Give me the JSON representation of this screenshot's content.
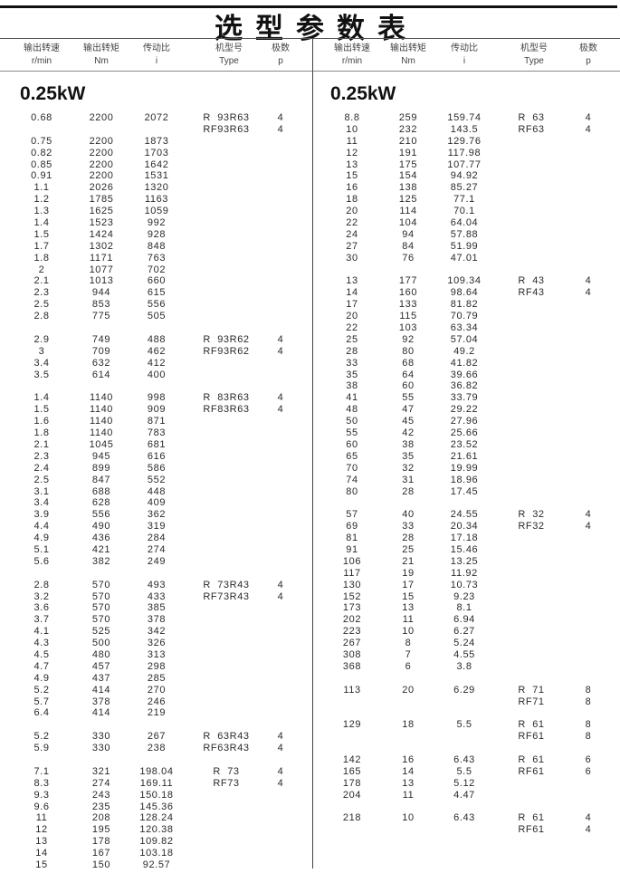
{
  "title": "选型参数表",
  "headers": [
    {
      "cn": "输出转速",
      "unit": "r/min"
    },
    {
      "cn": "输出转矩",
      "unit": "Nm"
    },
    {
      "cn": "传动比",
      "unit": "i"
    },
    {
      "cn": "机型号",
      "unit": "Type"
    },
    {
      "cn": "极数",
      "unit": "p"
    }
  ],
  "left": {
    "power": "0.25kW",
    "groups": [
      {
        "rows": [
          [
            "0.68",
            "2200",
            "2072",
            "R  93R63",
            "4"
          ],
          [
            "",
            "",
            "",
            "RF93R63",
            "4"
          ],
          [
            "0.75",
            "2200",
            "1873",
            "",
            ""
          ],
          [
            "0.82",
            "2200",
            "1703",
            "",
            ""
          ],
          [
            "0.85",
            "2200",
            "1642",
            "",
            ""
          ],
          [
            "0.91",
            "2200",
            "1531",
            "",
            ""
          ],
          [
            "1.1",
            "2026",
            "1320",
            "",
            ""
          ],
          [
            "1.2",
            "1785",
            "1163",
            "",
            ""
          ],
          [
            "1.3",
            "1625",
            "1059",
            "",
            ""
          ],
          [
            "1.4",
            "1523",
            "992",
            "",
            ""
          ],
          [
            "1.5",
            "1424",
            "928",
            "",
            ""
          ],
          [
            "1.7",
            "1302",
            "848",
            "",
            ""
          ],
          [
            "1.8",
            "1171",
            "763",
            "",
            ""
          ],
          [
            "2",
            "1077",
            "702",
            "",
            ""
          ],
          [
            "2.1",
            "1013",
            "660",
            "",
            ""
          ],
          [
            "2.3",
            "944",
            "615",
            "",
            ""
          ],
          [
            "2.5",
            "853",
            "556",
            "",
            ""
          ],
          [
            "2.8",
            "775",
            "505",
            "",
            ""
          ]
        ]
      },
      {
        "rows": [
          [
            "2.9",
            "749",
            "488",
            "R  93R62",
            "4"
          ],
          [
            "3",
            "709",
            "462",
            "RF93R62",
            "4"
          ],
          [
            "3.4",
            "632",
            "412",
            "",
            ""
          ],
          [
            "3.5",
            "614",
            "400",
            "",
            ""
          ]
        ]
      },
      {
        "rows": [
          [
            "1.4",
            "1140",
            "998",
            "R  83R63",
            "4"
          ],
          [
            "1.5",
            "1140",
            "909",
            "RF83R63",
            "4"
          ],
          [
            "1.6",
            "1140",
            "871",
            "",
            ""
          ],
          [
            "1.8",
            "1140",
            "783",
            "",
            ""
          ],
          [
            "2.1",
            "1045",
            "681",
            "",
            ""
          ],
          [
            "2.3",
            "945",
            "616",
            "",
            ""
          ],
          [
            "2.4",
            "899",
            "586",
            "",
            ""
          ],
          [
            "2.5",
            "847",
            "552",
            "",
            ""
          ],
          [
            "3.1",
            "688",
            "448",
            "",
            ""
          ],
          [
            "3.4",
            "628",
            "409",
            "",
            ""
          ],
          [
            "3.9",
            "556",
            "362",
            "",
            ""
          ],
          [
            "4.4",
            "490",
            "319",
            "",
            ""
          ],
          [
            "4.9",
            "436",
            "284",
            "",
            ""
          ],
          [
            "5.1",
            "421",
            "274",
            "",
            ""
          ],
          [
            "5.6",
            "382",
            "249",
            "",
            ""
          ]
        ]
      },
      {
        "rows": [
          [
            "2.8",
            "570",
            "493",
            "R  73R43",
            "4"
          ],
          [
            "3.2",
            "570",
            "433",
            "RF73R43",
            "4"
          ],
          [
            "3.6",
            "570",
            "385",
            "",
            ""
          ],
          [
            "3.7",
            "570",
            "378",
            "",
            ""
          ],
          [
            "4.1",
            "525",
            "342",
            "",
            ""
          ],
          [
            "4.3",
            "500",
            "326",
            "",
            ""
          ],
          [
            "4.5",
            "480",
            "313",
            "",
            ""
          ],
          [
            "4.7",
            "457",
            "298",
            "",
            ""
          ],
          [
            "4.9",
            "437",
            "285",
            "",
            ""
          ],
          [
            "5.2",
            "414",
            "270",
            "",
            ""
          ],
          [
            "5.7",
            "378",
            "246",
            "",
            ""
          ],
          [
            "6.4",
            "414",
            "219",
            "",
            ""
          ]
        ]
      },
      {
        "rows": [
          [
            "5.2",
            "330",
            "267",
            "R  63R43",
            "4"
          ],
          [
            "5.9",
            "330",
            "238",
            "RF63R43",
            "4"
          ]
        ]
      },
      {
        "rows": [
          [
            "7.1",
            "321",
            "198.04",
            "R  73",
            "4"
          ],
          [
            "8.3",
            "274",
            "169.11",
            "RF73",
            "4"
          ],
          [
            "9.3",
            "243",
            "150.18",
            "",
            ""
          ],
          [
            "9.6",
            "235",
            "145.36",
            "",
            ""
          ],
          [
            "11",
            "208",
            "128.24",
            "",
            ""
          ],
          [
            "12",
            "195",
            "120.38",
            "",
            ""
          ],
          [
            "13",
            "178",
            "109.82",
            "",
            ""
          ],
          [
            "14",
            "167",
            "103.18",
            "",
            ""
          ],
          [
            "15",
            "150",
            "92.57",
            "",
            ""
          ]
        ]
      }
    ]
  },
  "right": {
    "power": "0.25kW",
    "groups": [
      {
        "rows": [
          [
            "8.8",
            "259",
            "159.74",
            "R  63",
            "4"
          ],
          [
            "10",
            "232",
            "143.5",
            "RF63",
            "4"
          ],
          [
            "11",
            "210",
            "129.76",
            "",
            ""
          ],
          [
            "12",
            "191",
            "117.98",
            "",
            ""
          ],
          [
            "13",
            "175",
            "107.77",
            "",
            ""
          ],
          [
            "15",
            "154",
            "94.92",
            "",
            ""
          ],
          [
            "16",
            "138",
            "85.27",
            "",
            ""
          ],
          [
            "18",
            "125",
            "77.1",
            "",
            ""
          ],
          [
            "20",
            "114",
            "70.1",
            "",
            ""
          ],
          [
            "22",
            "104",
            "64.04",
            "",
            ""
          ],
          [
            "24",
            "94",
            "57.88",
            "",
            ""
          ],
          [
            "27",
            "84",
            "51.99",
            "",
            ""
          ],
          [
            "30",
            "76",
            "47.01",
            "",
            ""
          ]
        ]
      },
      {
        "rows": [
          [
            "13",
            "177",
            "109.34",
            "R  43",
            "4"
          ],
          [
            "14",
            "160",
            "98.64",
            "RF43",
            "4"
          ],
          [
            "17",
            "133",
            "81.82",
            "",
            ""
          ],
          [
            "20",
            "115",
            "70.79",
            "",
            ""
          ],
          [
            "22",
            "103",
            "63.34",
            "",
            ""
          ],
          [
            "25",
            "92",
            "57.04",
            "",
            ""
          ],
          [
            "28",
            "80",
            "49.2",
            "",
            ""
          ],
          [
            "33",
            "68",
            "41.82",
            "",
            ""
          ],
          [
            "35",
            "64",
            "39.66",
            "",
            ""
          ],
          [
            "38",
            "60",
            "36.82",
            "",
            ""
          ],
          [
            "41",
            "55",
            "33.79",
            "",
            ""
          ],
          [
            "48",
            "47",
            "29.22",
            "",
            ""
          ],
          [
            "50",
            "45",
            "27.96",
            "",
            ""
          ],
          [
            "55",
            "42",
            "25.66",
            "",
            ""
          ],
          [
            "60",
            "38",
            "23.52",
            "",
            ""
          ],
          [
            "65",
            "35",
            "21.61",
            "",
            ""
          ],
          [
            "70",
            "32",
            "19.99",
            "",
            ""
          ],
          [
            "74",
            "31",
            "18.96",
            "",
            ""
          ],
          [
            "80",
            "28",
            "17.45",
            "",
            ""
          ]
        ]
      },
      {
        "rows": [
          [
            "57",
            "40",
            "24.55",
            "R  32",
            "4"
          ],
          [
            "69",
            "33",
            "20.34",
            "RF32",
            "4"
          ],
          [
            "81",
            "28",
            "17.18",
            "",
            ""
          ],
          [
            "91",
            "25",
            "15.46",
            "",
            ""
          ],
          [
            "106",
            "21",
            "13.25",
            "",
            ""
          ],
          [
            "117",
            "19",
            "11.92",
            "",
            ""
          ],
          [
            "130",
            "17",
            "10.73",
            "",
            ""
          ],
          [
            "152",
            "15",
            "9.23",
            "",
            ""
          ],
          [
            "173",
            "13",
            "8.1",
            "",
            ""
          ],
          [
            "202",
            "11",
            "6.94",
            "",
            ""
          ],
          [
            "223",
            "10",
            "6.27",
            "",
            ""
          ],
          [
            "267",
            "8",
            "5.24",
            "",
            ""
          ],
          [
            "308",
            "7",
            "4.55",
            "",
            ""
          ],
          [
            "368",
            "6",
            "3.8",
            "",
            ""
          ]
        ]
      },
      {
        "rows": [
          [
            "113",
            "20",
            "6.29",
            "R  71",
            "8"
          ],
          [
            "",
            "",
            "",
            "RF71",
            "8"
          ]
        ]
      },
      {
        "rows": [
          [
            "129",
            "18",
            "5.5",
            "R  61",
            "8"
          ],
          [
            "",
            "",
            "",
            "RF61",
            "8"
          ]
        ]
      },
      {
        "rows": [
          [
            "142",
            "16",
            "6.43",
            "R  61",
            "6"
          ],
          [
            "165",
            "14",
            "5.5",
            "RF61",
            "6"
          ],
          [
            "178",
            "13",
            "5.12",
            "",
            ""
          ],
          [
            "204",
            "11",
            "4.47",
            "",
            ""
          ]
        ]
      },
      {
        "rows": [
          [
            "218",
            "10",
            "6.43",
            "R  61",
            "4"
          ],
          [
            "",
            "",
            "",
            "RF61",
            "4"
          ]
        ]
      }
    ]
  }
}
